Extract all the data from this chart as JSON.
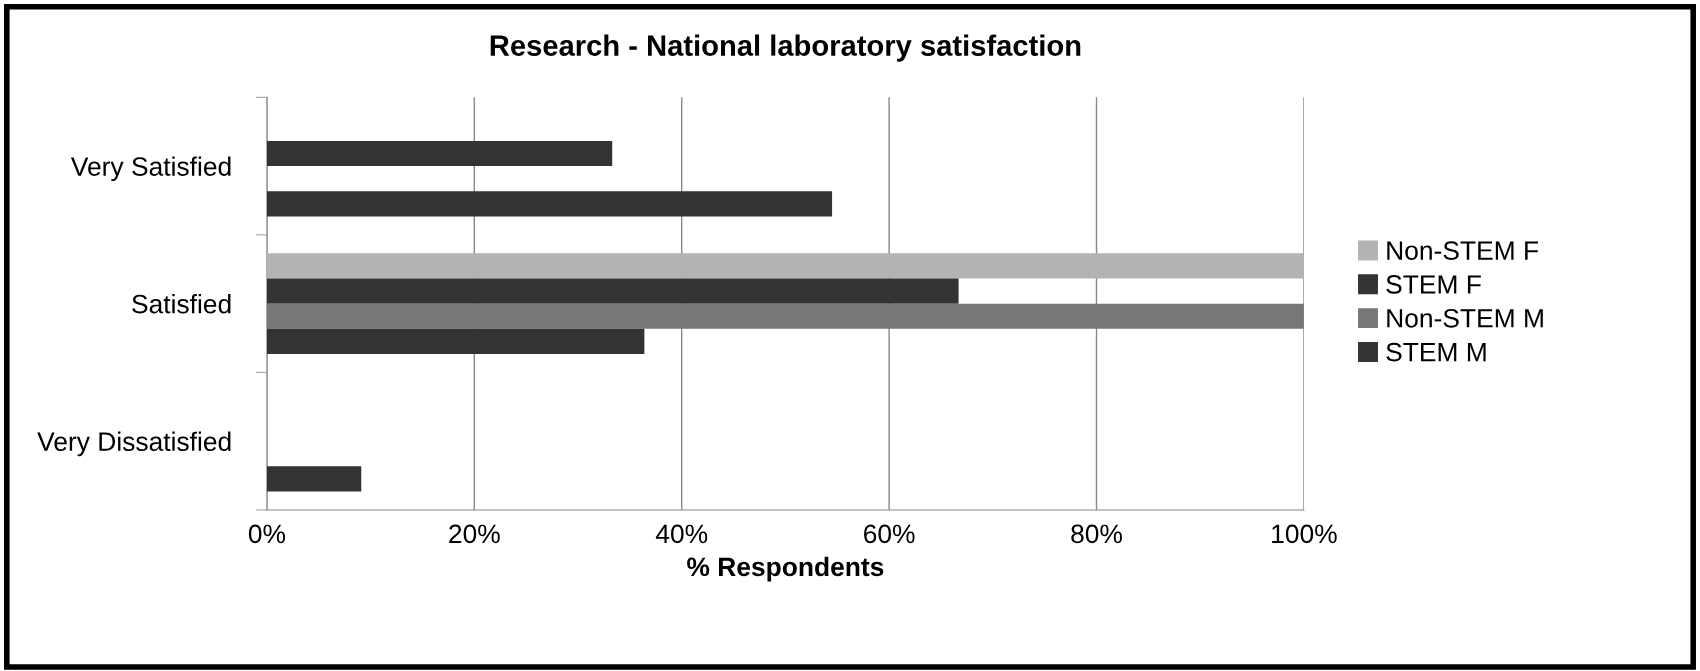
{
  "chart_data": {
    "type": "bar",
    "orientation": "horizontal",
    "title": "Research - National laboratory satisfaction",
    "xlabel": "% Respondents",
    "categories": [
      "Very Satisfied",
      "Satisfied",
      "Very Dissatisfied"
    ],
    "series": [
      {
        "name": "Non-STEM F",
        "color": "#b3b3b3",
        "values": [
          0,
          100,
          0
        ]
      },
      {
        "name": "STEM F",
        "color": "#333333",
        "values": [
          33.3,
          66.7,
          0
        ]
      },
      {
        "name": "Non-STEM M",
        "color": "#777777",
        "values": [
          0,
          100,
          0
        ]
      },
      {
        "name": "STEM M",
        "color": "#333333",
        "values": [
          54.5,
          36.4,
          9.1
        ]
      }
    ],
    "xlim": [
      0,
      100
    ],
    "xticks": [
      {
        "value": 0,
        "label": "0%"
      },
      {
        "value": 20,
        "label": "20%"
      },
      {
        "value": 40,
        "label": "40%"
      },
      {
        "value": 60,
        "label": "60%"
      },
      {
        "value": 80,
        "label": "80%"
      },
      {
        "value": 100,
        "label": "100%"
      }
    ],
    "grid": "x",
    "legend": "right"
  }
}
